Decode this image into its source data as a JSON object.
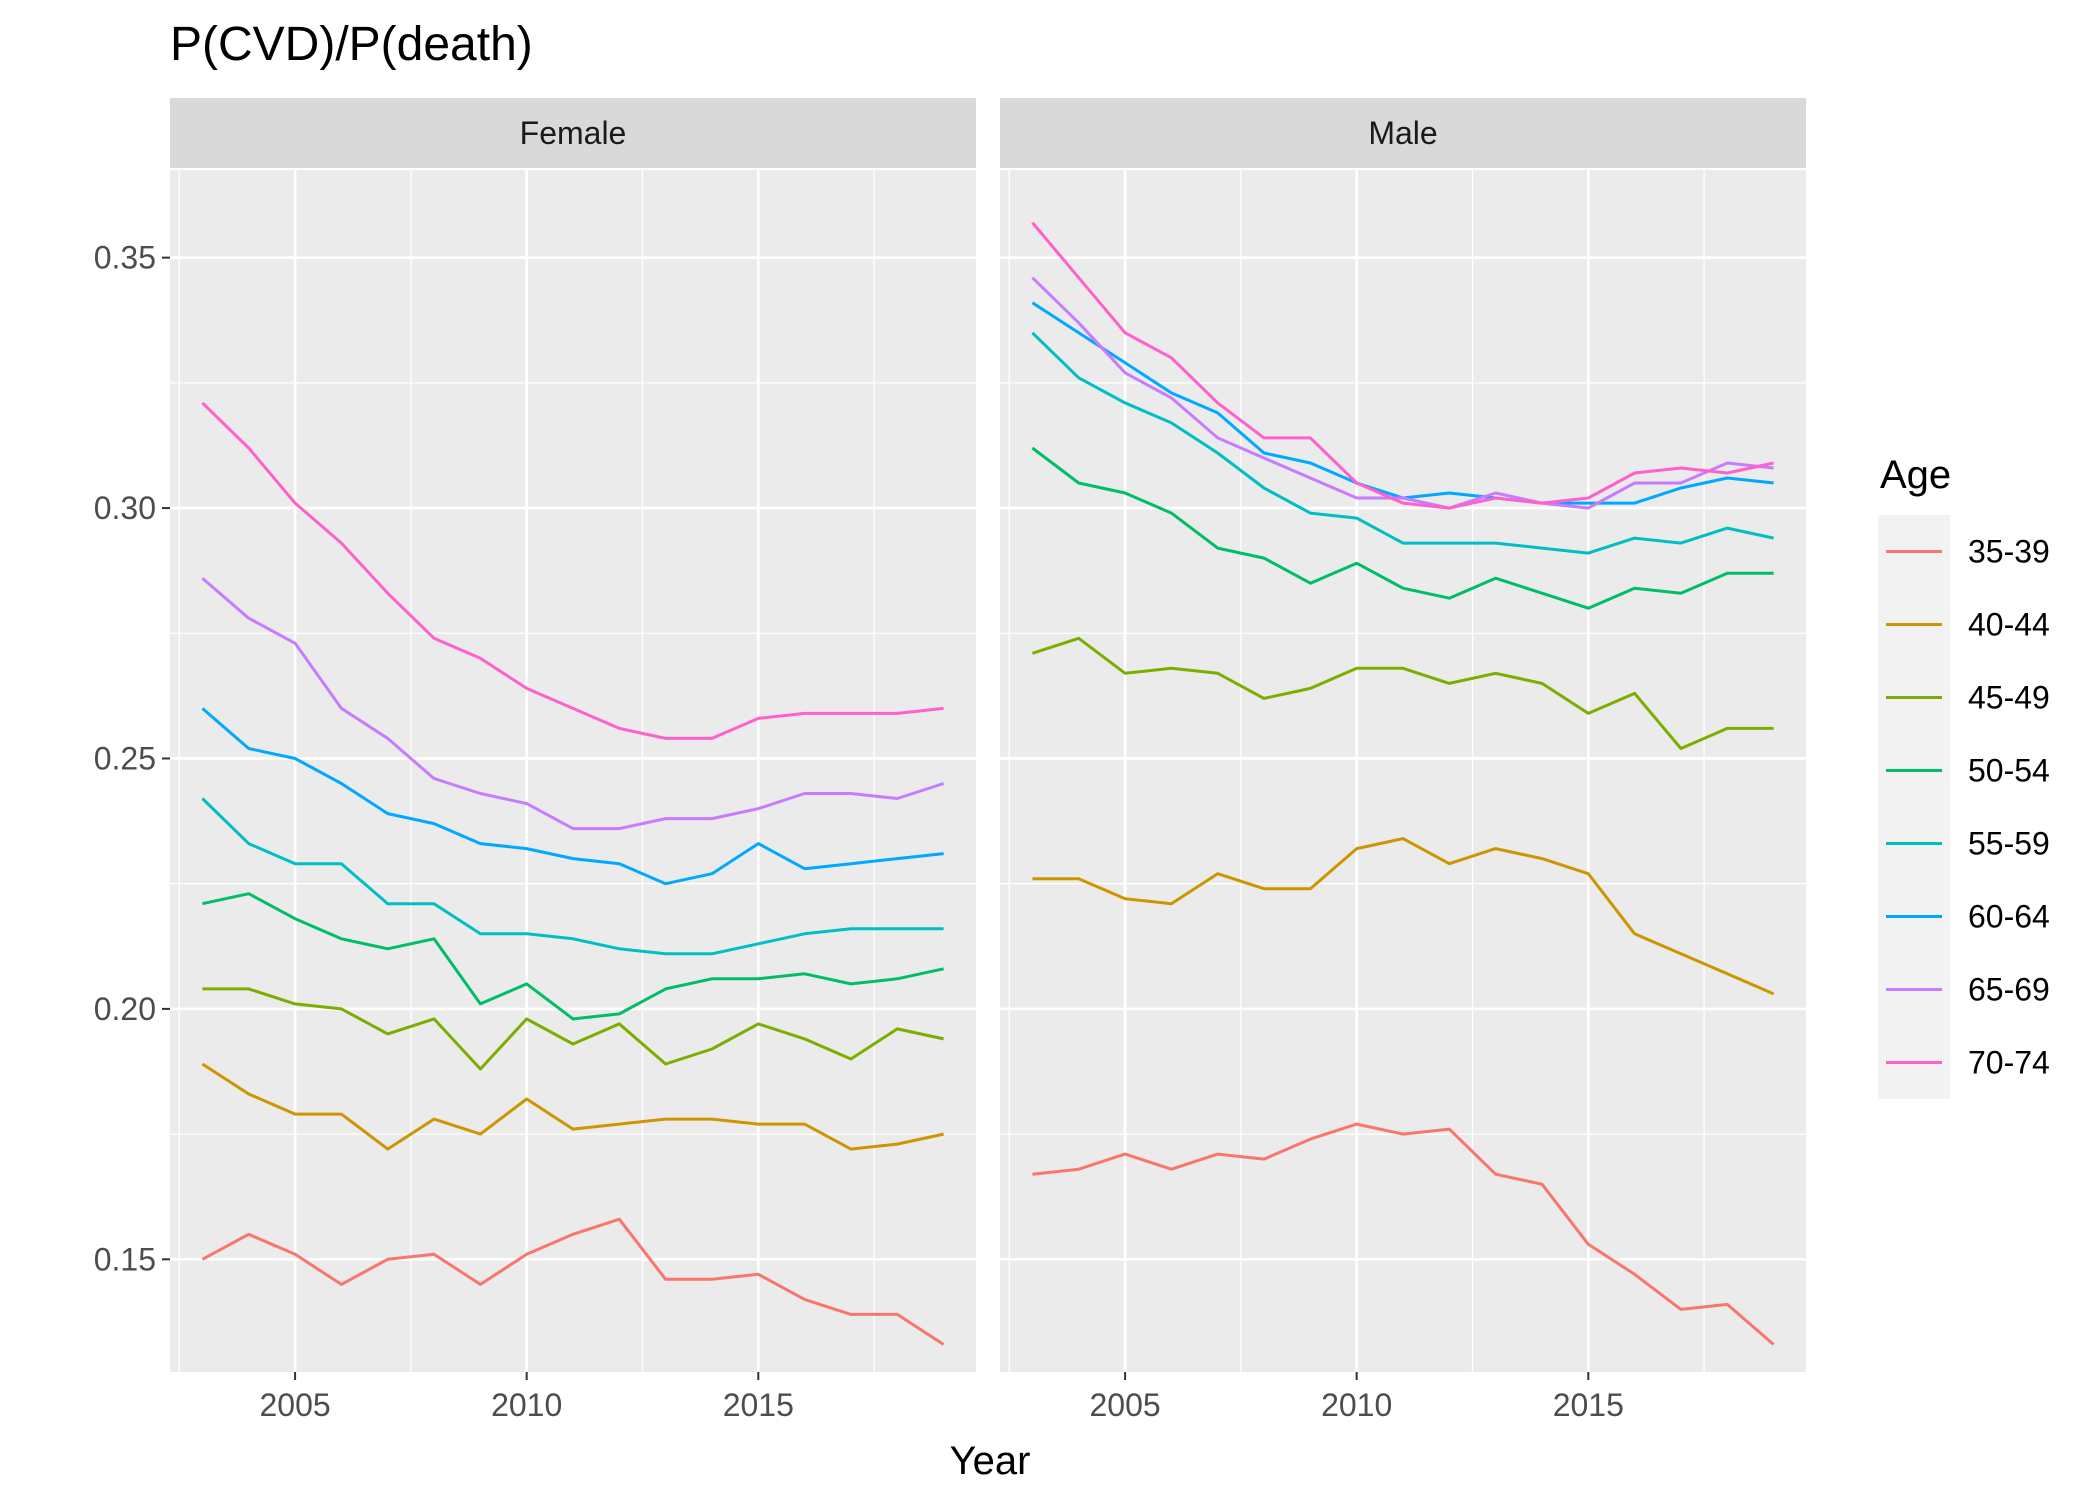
{
  "chart_data": {
    "type": "line",
    "title": "P(CVD)/P(death)",
    "xlabel": "Year",
    "ylabel": "",
    "xlim": [
      2002.3,
      2019.7
    ],
    "ylim": [
      0.1275,
      0.3675
    ],
    "x_ticks": [
      2005,
      2010,
      2015
    ],
    "y_ticks": [
      0.15,
      0.2,
      0.25,
      0.3,
      0.35
    ],
    "y_tick_labels": [
      "0.15",
      "0.20",
      "0.25",
      "0.30",
      "0.35"
    ],
    "grid": true,
    "legend": {
      "title": "Age",
      "position": "right",
      "entries": [
        "35-39",
        "40-44",
        "45-49",
        "50-54",
        "55-59",
        "60-64",
        "65-69",
        "70-74"
      ]
    },
    "colors": {
      "35-39": "#F8766D",
      "40-44": "#CD9600",
      "45-49": "#7CAE00",
      "50-54": "#00BE67",
      "55-59": "#00BFC4",
      "60-64": "#00A9FF",
      "65-69": "#C77CFF",
      "70-74": "#FF61CC"
    },
    "x": [
      2003,
      2004,
      2005,
      2006,
      2007,
      2008,
      2009,
      2010,
      2011,
      2012,
      2013,
      2014,
      2015,
      2016,
      2017,
      2018,
      2019
    ],
    "panels": [
      {
        "label": "Female",
        "series": [
          {
            "name": "35-39",
            "values": [
              0.15,
              0.155,
              0.151,
              0.145,
              0.15,
              0.151,
              0.145,
              0.151,
              0.155,
              0.158,
              0.146,
              0.146,
              0.147,
              0.142,
              0.139,
              0.139,
              0.133
            ]
          },
          {
            "name": "40-44",
            "values": [
              0.189,
              0.183,
              0.179,
              0.179,
              0.172,
              0.178,
              0.175,
              0.182,
              0.176,
              0.177,
              0.178,
              0.178,
              0.177,
              0.177,
              0.172,
              0.173,
              0.175
            ]
          },
          {
            "name": "45-49",
            "values": [
              0.204,
              0.204,
              0.201,
              0.2,
              0.195,
              0.198,
              0.188,
              0.198,
              0.193,
              0.197,
              0.189,
              0.192,
              0.197,
              0.194,
              0.19,
              0.196,
              0.194
            ]
          },
          {
            "name": "50-54",
            "values": [
              0.221,
              0.223,
              0.218,
              0.214,
              0.212,
              0.214,
              0.201,
              0.205,
              0.198,
              0.199,
              0.204,
              0.206,
              0.206,
              0.207,
              0.205,
              0.206,
              0.208
            ]
          },
          {
            "name": "55-59",
            "values": [
              0.242,
              0.233,
              0.229,
              0.229,
              0.221,
              0.221,
              0.215,
              0.215,
              0.214,
              0.212,
              0.211,
              0.211,
              0.213,
              0.215,
              0.216,
              0.216,
              0.216
            ]
          },
          {
            "name": "60-64",
            "values": [
              0.26,
              0.252,
              0.25,
              0.245,
              0.239,
              0.237,
              0.233,
              0.232,
              0.23,
              0.229,
              0.225,
              0.227,
              0.233,
              0.228,
              0.229,
              0.23,
              0.231
            ]
          },
          {
            "name": "65-69",
            "values": [
              0.286,
              0.278,
              0.273,
              0.26,
              0.254,
              0.246,
              0.243,
              0.241,
              0.236,
              0.236,
              0.238,
              0.238,
              0.24,
              0.243,
              0.243,
              0.242,
              0.245
            ]
          },
          {
            "name": "70-74",
            "values": [
              0.321,
              0.312,
              0.301,
              0.293,
              0.283,
              0.274,
              0.27,
              0.264,
              0.26,
              0.256,
              0.254,
              0.254,
              0.258,
              0.259,
              0.259,
              0.259,
              0.26
            ]
          }
        ]
      },
      {
        "label": "Male",
        "series": [
          {
            "name": "35-39",
            "values": [
              0.167,
              0.168,
              0.171,
              0.168,
              0.171,
              0.17,
              0.174,
              0.177,
              0.175,
              0.176,
              0.167,
              0.165,
              0.153,
              0.147,
              0.14,
              0.141,
              0.133
            ]
          },
          {
            "name": "40-44",
            "values": [
              0.226,
              0.226,
              0.222,
              0.221,
              0.227,
              0.224,
              0.224,
              0.232,
              0.234,
              0.229,
              0.232,
              0.23,
              0.227,
              0.215,
              0.211,
              0.207,
              0.203
            ]
          },
          {
            "name": "45-49",
            "values": [
              0.271,
              0.274,
              0.267,
              0.268,
              0.267,
              0.262,
              0.264,
              0.268,
              0.268,
              0.265,
              0.267,
              0.265,
              0.259,
              0.263,
              0.252,
              0.256,
              0.256
            ]
          },
          {
            "name": "50-54",
            "values": [
              0.312,
              0.305,
              0.303,
              0.299,
              0.292,
              0.29,
              0.285,
              0.289,
              0.284,
              0.282,
              0.286,
              0.283,
              0.28,
              0.284,
              0.283,
              0.287,
              0.287
            ]
          },
          {
            "name": "55-59",
            "values": [
              0.335,
              0.326,
              0.321,
              0.317,
              0.311,
              0.304,
              0.299,
              0.298,
              0.293,
              0.293,
              0.293,
              0.292,
              0.291,
              0.294,
              0.293,
              0.296,
              0.294
            ]
          },
          {
            "name": "60-64",
            "values": [
              0.341,
              0.335,
              0.329,
              0.323,
              0.319,
              0.311,
              0.309,
              0.305,
              0.302,
              0.303,
              0.302,
              0.301,
              0.301,
              0.301,
              0.304,
              0.306,
              0.305
            ]
          },
          {
            "name": "65-69",
            "values": [
              0.346,
              0.337,
              0.327,
              0.322,
              0.314,
              0.31,
              0.306,
              0.302,
              0.302,
              0.3,
              0.303,
              0.301,
              0.3,
              0.305,
              0.305,
              0.309,
              0.308
            ]
          },
          {
            "name": "70-74",
            "values": [
              0.357,
              0.346,
              0.335,
              0.33,
              0.321,
              0.314,
              0.314,
              0.305,
              0.301,
              0.3,
              0.302,
              0.301,
              0.302,
              0.307,
              0.308,
              0.307,
              0.309
            ]
          }
        ]
      }
    ]
  }
}
